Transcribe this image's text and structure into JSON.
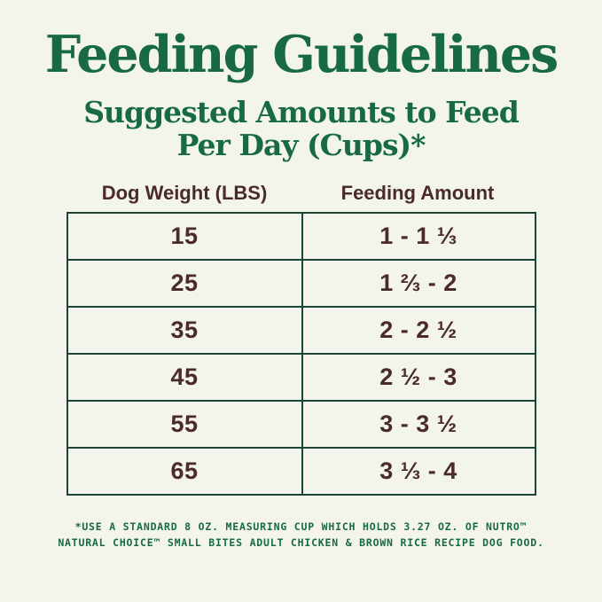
{
  "page": {
    "title": "Feeding Guidelines",
    "subtitle_line1": "Suggested Amounts to Feed",
    "subtitle_line2": "Per Day (Cups)*"
  },
  "colors": {
    "background": "#f3f5ec",
    "heading_green": "#176a41",
    "text_maroon": "#4a2a2c",
    "table_border": "#1c4634"
  },
  "table": {
    "headers": [
      "Dog Weight (LBS)",
      "Feeding Amount"
    ],
    "rows": [
      {
        "weight": "15",
        "amount": "1 - 1 ⅓"
      },
      {
        "weight": "25",
        "amount": "1 ⅔ - 2"
      },
      {
        "weight": "35",
        "amount": "2 - 2 ½"
      },
      {
        "weight": "45",
        "amount": "2 ½ - 3"
      },
      {
        "weight": "55",
        "amount": "3 - 3 ½"
      },
      {
        "weight": "65",
        "amount": "3 ⅓ - 4"
      }
    ]
  },
  "footnote": {
    "line1": "*USE A STANDARD 8 OZ. MEASURING CUP WHICH HOLDS 3.27 OZ. OF NUTRO™",
    "line2": "NATURAL CHOICE™ SMALL BITES ADULT CHICKEN & BROWN RICE RECIPE DOG FOOD."
  },
  "chart_data": {
    "type": "table",
    "title": "Feeding Guidelines — Suggested Amounts to Feed Per Day (Cups)*",
    "columns": [
      "Dog Weight (LBS)",
      "Feeding Amount"
    ],
    "rows": [
      [
        15,
        "1 - 1 1/3"
      ],
      [
        25,
        "1 2/3 - 2"
      ],
      [
        35,
        "2 - 2 1/2"
      ],
      [
        45,
        "2 1/2 - 3"
      ],
      [
        55,
        "3 - 3 1/2"
      ],
      [
        65,
        "3 1/3 - 4"
      ]
    ],
    "x": [
      15,
      25,
      35,
      45,
      55,
      65
    ],
    "series": [
      {
        "name": "Feeding amount min (cups)",
        "values": [
          1,
          1.67,
          2,
          2.5,
          3,
          3.33
        ]
      },
      {
        "name": "Feeding amount max (cups)",
        "values": [
          1.33,
          2,
          2.5,
          3,
          3.5,
          4
        ]
      }
    ],
    "annotations": [
      "*USE A STANDARD 8 OZ. MEASURING CUP WHICH HOLDS 3.27 OZ. OF NUTRO™ NATURAL CHOICE™ SMALL BITES ADULT CHICKEN & BROWN RICE RECIPE DOG FOOD."
    ]
  }
}
